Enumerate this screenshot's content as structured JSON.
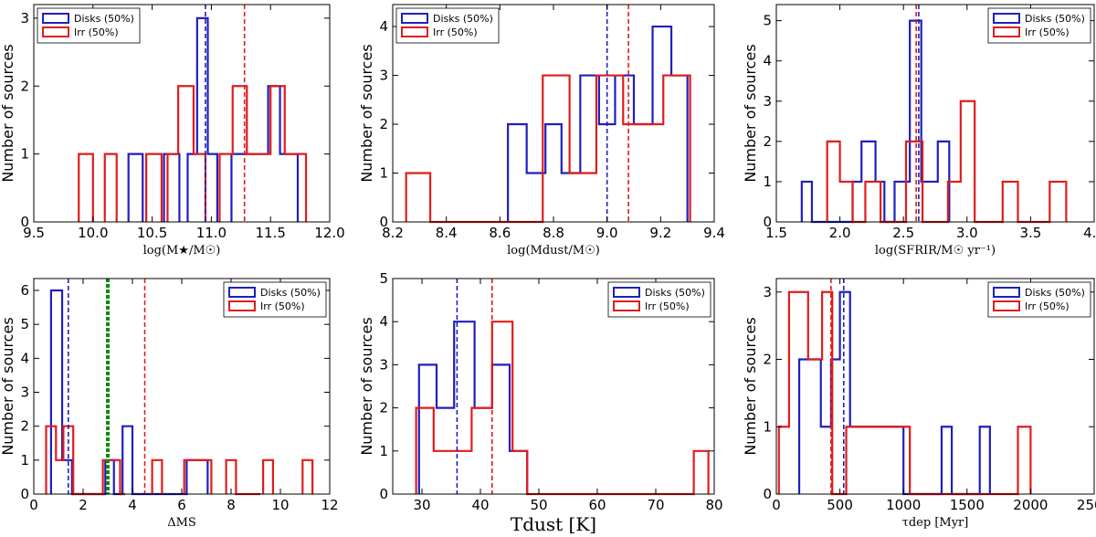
{
  "colors": {
    "disks": "#1f1fc0",
    "irr": "#e01c1c",
    "ms": "#0b8a0b",
    "axis": "#000000"
  },
  "chart_data": [
    {
      "type": "histogram",
      "title": "",
      "xlabel": "log(M★/M☉)",
      "ylabel": "Number of sources",
      "xlim": [
        9.5,
        12.0
      ],
      "ylim": [
        0,
        3.2
      ],
      "xticks": [
        "9.5",
        "10.0",
        "10.5",
        "11.0",
        "11.5",
        "12.0"
      ],
      "xtick_values": [
        9.5,
        10.0,
        10.5,
        11.0,
        11.5,
        12.0
      ],
      "yticks": [
        "0",
        "1",
        "2",
        "3"
      ],
      "ytick_values": [
        0,
        1,
        2,
        3
      ],
      "legend": {
        "position": "top-left",
        "entries": [
          "Disks (50%)",
          "Irr (50%)"
        ]
      },
      "series": [
        {
          "name": "Disks (50%)",
          "color": "disks",
          "bins": [
            [
              10.3,
              10.42,
              1
            ],
            [
              10.6,
              10.67,
              1
            ],
            [
              10.67,
              10.73,
              1
            ],
            [
              10.8,
              10.88,
              1
            ],
            [
              10.88,
              10.97,
              3
            ],
            [
              10.97,
              11.05,
              1
            ],
            [
              11.17,
              11.25,
              1
            ],
            [
              11.25,
              11.35,
              1
            ],
            [
              11.35,
              11.48,
              1
            ],
            [
              11.48,
              11.58,
              2
            ],
            [
              11.58,
              11.65,
              1
            ],
            [
              11.65,
              11.73,
              1
            ]
          ]
        },
        {
          "name": "Irr (50%)",
          "color": "irr",
          "bins": [
            [
              9.88,
              10.0,
              1
            ],
            [
              10.1,
              10.2,
              1
            ],
            [
              10.45,
              10.58,
              1
            ],
            [
              10.63,
              10.72,
              1
            ],
            [
              10.72,
              10.85,
              2
            ],
            [
              10.85,
              10.95,
              1
            ],
            [
              11.07,
              11.18,
              1
            ],
            [
              11.18,
              11.3,
              2
            ],
            [
              11.3,
              11.4,
              1
            ],
            [
              11.4,
              11.5,
              1
            ],
            [
              11.5,
              11.62,
              2
            ],
            [
              11.62,
              11.7,
              1
            ],
            [
              11.7,
              11.8,
              1
            ]
          ]
        }
      ],
      "median_lines": [
        {
          "name": "Disks median",
          "color": "disks",
          "x": 10.95
        },
        {
          "name": "Irr median",
          "color": "irr",
          "x": 11.28
        }
      ]
    },
    {
      "type": "histogram",
      "title": "",
      "xlabel": "log(Mdust/M☉)",
      "ylabel": "Number of sources",
      "xlim": [
        8.2,
        9.4
      ],
      "ylim": [
        0,
        4.45
      ],
      "xticks": [
        "8.2",
        "8.4",
        "8.6",
        "8.8",
        "9.0",
        "9.2",
        "9.4"
      ],
      "xtick_values": [
        8.2,
        8.4,
        8.6,
        8.8,
        9.0,
        9.2,
        9.4
      ],
      "yticks": [
        "0",
        "1",
        "2",
        "3",
        "4"
      ],
      "ytick_values": [
        0,
        1,
        2,
        3,
        4
      ],
      "legend": {
        "position": "top-left",
        "entries": [
          "Disks (50%)",
          "Irr (50%)"
        ]
      },
      "series": [
        {
          "name": "Disks (50%)",
          "color": "disks",
          "bins": [
            [
              8.63,
              8.7,
              2
            ],
            [
              8.7,
              8.77,
              1
            ],
            [
              8.77,
              8.83,
              2
            ],
            [
              8.83,
              8.9,
              1
            ],
            [
              8.9,
              8.97,
              3
            ],
            [
              8.97,
              9.03,
              2
            ],
            [
              9.03,
              9.1,
              3
            ],
            [
              9.1,
              9.17,
              2
            ],
            [
              9.17,
              9.24,
              4
            ],
            [
              9.24,
              9.3,
              3
            ]
          ]
        },
        {
          "name": "Irr (50%)",
          "color": "irr",
          "bins": [
            [
              8.25,
              8.34,
              1
            ],
            [
              8.34,
              8.76,
              0
            ],
            [
              8.76,
              8.86,
              3
            ],
            [
              8.86,
              8.96,
              1
            ],
            [
              8.96,
              9.06,
              3
            ],
            [
              9.06,
              9.15,
              2
            ],
            [
              9.15,
              9.21,
              2
            ],
            [
              9.21,
              9.31,
              3
            ]
          ]
        }
      ],
      "median_lines": [
        {
          "name": "Disks median",
          "color": "disks",
          "x": 9.0
        },
        {
          "name": "Irr median",
          "color": "irr",
          "x": 9.08
        }
      ]
    },
    {
      "type": "histogram",
      "title": "",
      "xlabel": "log(SFRIR/M☉ yr⁻¹)",
      "ylabel": "Number of sources",
      "xlim": [
        1.5,
        4.0
      ],
      "ylim": [
        0,
        5.4
      ],
      "xticks": [
        "1.5",
        "2.0",
        "2.5",
        "3.0",
        "3.5",
        "4.0"
      ],
      "xtick_values": [
        1.5,
        2.0,
        2.5,
        3.0,
        3.5,
        4.0
      ],
      "yticks": [
        "0",
        "1",
        "2",
        "3",
        "4",
        "5"
      ],
      "ytick_values": [
        0,
        1,
        2,
        3,
        4,
        5
      ],
      "legend": {
        "position": "top-right",
        "entries": [
          "Disks (50%)",
          "Irr (50%)"
        ]
      },
      "series": [
        {
          "name": "Disks (50%)",
          "color": "disks",
          "bins": [
            [
              1.7,
              1.78,
              1
            ],
            [
              1.78,
              2.1,
              0
            ],
            [
              2.1,
              2.17,
              1
            ],
            [
              2.17,
              2.28,
              2
            ],
            [
              2.28,
              2.35,
              1
            ],
            [
              2.35,
              2.43,
              0
            ],
            [
              2.43,
              2.55,
              1
            ],
            [
              2.55,
              2.64,
              5
            ],
            [
              2.64,
              2.77,
              1
            ],
            [
              2.77,
              2.86,
              2
            ]
          ]
        },
        {
          "name": "Irr (50%)",
          "color": "irr",
          "bins": [
            [
              1.9,
              2.0,
              2
            ],
            [
              2.0,
              2.1,
              1
            ],
            [
              2.1,
              2.2,
              0
            ],
            [
              2.2,
              2.32,
              1
            ],
            [
              2.32,
              2.52,
              0
            ],
            [
              2.52,
              2.65,
              2
            ],
            [
              2.65,
              2.85,
              0
            ],
            [
              2.85,
              2.95,
              1
            ],
            [
              2.95,
              3.06,
              3
            ],
            [
              3.06,
              3.28,
              0
            ],
            [
              3.28,
              3.4,
              1
            ],
            [
              3.4,
              3.65,
              0
            ],
            [
              3.65,
              3.78,
              1
            ]
          ]
        }
      ],
      "median_lines": [
        {
          "name": "Disks median",
          "color": "disks",
          "x": 2.62
        },
        {
          "name": "Irr median",
          "color": "irr",
          "x": 2.6
        }
      ]
    },
    {
      "type": "histogram",
      "title": "",
      "xlabel": "ΔMS",
      "ylabel": "Number of sources",
      "xlim": [
        0,
        12
      ],
      "ylim": [
        0,
        6.35
      ],
      "xticks": [
        "0",
        "2",
        "4",
        "6",
        "8",
        "10",
        "12"
      ],
      "xtick_values": [
        0,
        2,
        4,
        6,
        8,
        10,
        12
      ],
      "yticks": [
        "0",
        "1",
        "2",
        "3",
        "4",
        "5",
        "6"
      ],
      "ytick_values": [
        0,
        1,
        2,
        3,
        4,
        5,
        6
      ],
      "legend": {
        "position": "top-right",
        "entries": [
          "Disks (50%)",
          "Irr (50%)"
        ]
      },
      "series": [
        {
          "name": "Disks (50%)",
          "color": "disks",
          "bins": [
            [
              0.7,
              1.15,
              6
            ],
            [
              1.15,
              1.55,
              1
            ],
            [
              1.55,
              2.9,
              0
            ],
            [
              2.9,
              3.25,
              1
            ],
            [
              3.25,
              3.6,
              0
            ],
            [
              3.6,
              4.0,
              2
            ],
            [
              4.0,
              6.2,
              0
            ],
            [
              6.2,
              6.65,
              1
            ],
            [
              6.65,
              7.05,
              1
            ]
          ]
        },
        {
          "name": "Irr (50%)",
          "color": "irr",
          "bins": [
            [
              0.5,
              0.9,
              2
            ],
            [
              0.9,
              1.2,
              1
            ],
            [
              1.2,
              1.6,
              2
            ],
            [
              1.6,
              2.8,
              0
            ],
            [
              2.8,
              3.2,
              1
            ],
            [
              3.2,
              3.5,
              1
            ],
            [
              3.5,
              3.7,
              0
            ],
            [
              4.8,
              5.2,
              1
            ],
            [
              6.1,
              6.5,
              1
            ],
            [
              6.5,
              7.2,
              1
            ],
            [
              7.8,
              8.2,
              1
            ],
            [
              8.2,
              9.2,
              0
            ],
            [
              9.3,
              9.7,
              1
            ],
            [
              10.9,
              11.3,
              1
            ]
          ]
        }
      ],
      "median_lines": [
        {
          "name": "Disks median",
          "color": "disks",
          "x": 1.4
        },
        {
          "name": "Irr median",
          "color": "irr",
          "x": 4.5
        }
      ],
      "reference_line": {
        "name": "Main sequence limit",
        "color": "ms",
        "x": 3.0
      }
    },
    {
      "type": "histogram",
      "title": "",
      "xlabel": "Tdust [K]",
      "ylabel": "Number of sources",
      "xlim": [
        25,
        80
      ],
      "ylim": [
        0,
        5
      ],
      "xticks": [
        "30",
        "40",
        "50",
        "60",
        "70",
        "80"
      ],
      "xtick_values": [
        30,
        40,
        50,
        60,
        70,
        80
      ],
      "yticks": [
        "0",
        "1",
        "2",
        "3",
        "4",
        "5"
      ],
      "ytick_values": [
        0,
        1,
        2,
        3,
        4,
        5
      ],
      "legend": {
        "position": "top-right",
        "entries": [
          "Disks (50%)",
          "Irr (50%)"
        ]
      },
      "series": [
        {
          "name": "Disks (50%)",
          "color": "disks",
          "bins": [
            [
              29.5,
              32.5,
              3
            ],
            [
              32.5,
              35.5,
              2
            ],
            [
              35.5,
              39.0,
              4
            ],
            [
              39.0,
              42.0,
              2
            ],
            [
              42.0,
              45.0,
              3
            ],
            [
              45.0,
              48.0,
              1
            ]
          ]
        },
        {
          "name": "Irr (50%)",
          "color": "irr",
          "bins": [
            [
              29.0,
              32.0,
              2
            ],
            [
              32.0,
              38.5,
              1
            ],
            [
              38.5,
              42.0,
              2
            ],
            [
              42.0,
              45.5,
              4
            ],
            [
              45.5,
              48.0,
              1
            ],
            [
              48.0,
              76.5,
              0
            ],
            [
              76.5,
              79.0,
              1
            ]
          ]
        }
      ],
      "median_lines": [
        {
          "name": "Disks median",
          "color": "disks",
          "x": 36
        },
        {
          "name": "Irr median",
          "color": "irr",
          "x": 42
        }
      ]
    },
    {
      "type": "histogram",
      "title": "",
      "xlabel": "τdep [Myr]",
      "ylabel": "Number of sources",
      "xlim": [
        0,
        2500
      ],
      "ylim": [
        0,
        3.2
      ],
      "xticks": [
        "0",
        "500",
        "1000",
        "1500",
        "2000",
        "2500"
      ],
      "xtick_values": [
        0,
        500,
        1000,
        1500,
        2000,
        2500
      ],
      "yticks": [
        "0",
        "1",
        "2",
        "3"
      ],
      "ytick_values": [
        0,
        1,
        2,
        3
      ],
      "legend": {
        "position": "top-right",
        "entries": [
          "Disks (50%)",
          "Irr (50%)"
        ]
      },
      "series": [
        {
          "name": "Disks (50%)",
          "color": "disks",
          "bins": [
            [
              180,
              350,
              2
            ],
            [
              350,
              430,
              1
            ],
            [
              430,
              500,
              2
            ],
            [
              500,
              580,
              3
            ],
            [
              580,
              1000,
              1
            ],
            [
              1000,
              1300,
              0
            ],
            [
              1300,
              1380,
              1
            ],
            [
              1380,
              1600,
              0
            ],
            [
              1600,
              1680,
              1
            ]
          ]
        },
        {
          "name": "Irr (50%)",
          "color": "irr",
          "bins": [
            [
              20,
              100,
              1
            ],
            [
              100,
              250,
              3
            ],
            [
              250,
              360,
              2
            ],
            [
              360,
              440,
              3
            ],
            [
              440,
              550,
              0
            ],
            [
              550,
              1050,
              1
            ],
            [
              1050,
              1900,
              0
            ],
            [
              1900,
              2000,
              1
            ]
          ]
        }
      ],
      "median_lines": [
        {
          "name": "Disks median",
          "color": "disks",
          "x": 530
        },
        {
          "name": "Irr median",
          "color": "irr",
          "x": 430
        }
      ]
    }
  ]
}
